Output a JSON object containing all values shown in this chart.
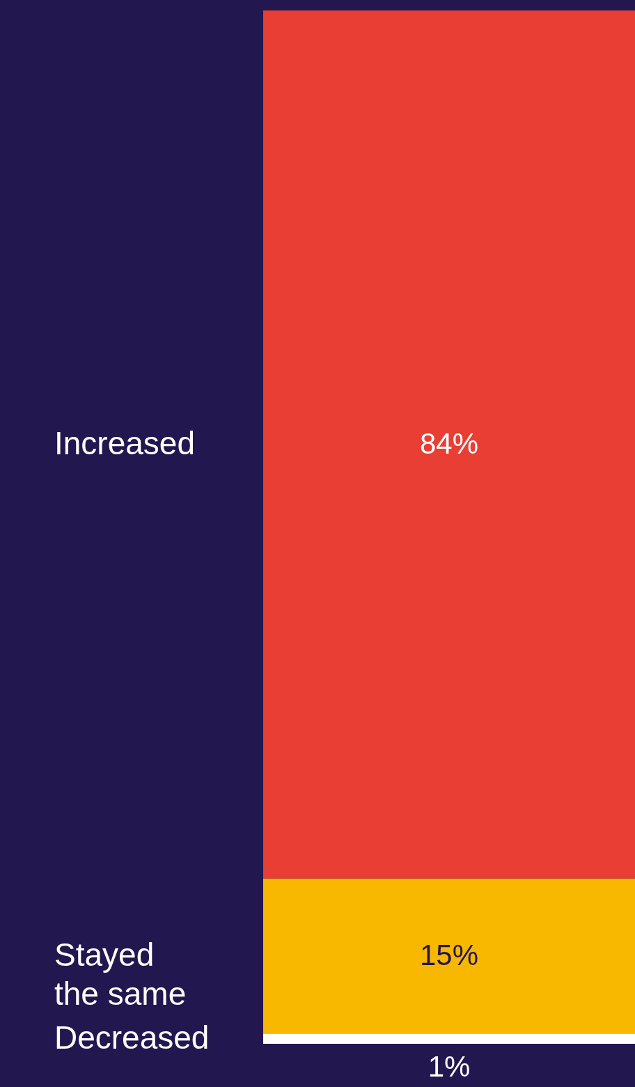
{
  "chart_data": {
    "type": "bar",
    "stacked": true,
    "categories": [
      null
    ],
    "series": [
      {
        "name": "Decreased",
        "color": "#ffffff",
        "values": [
          1
        ],
        "value_labels": [
          "1%"
        ]
      },
      {
        "name": "Stayed the same",
        "color": "#f8b800",
        "values": [
          15
        ],
        "value_labels": [
          "15%"
        ]
      },
      {
        "name": "Increased",
        "color": "#e83e33",
        "values": [
          84
        ],
        "value_labels": [
          "84%"
        ]
      }
    ]
  }
}
